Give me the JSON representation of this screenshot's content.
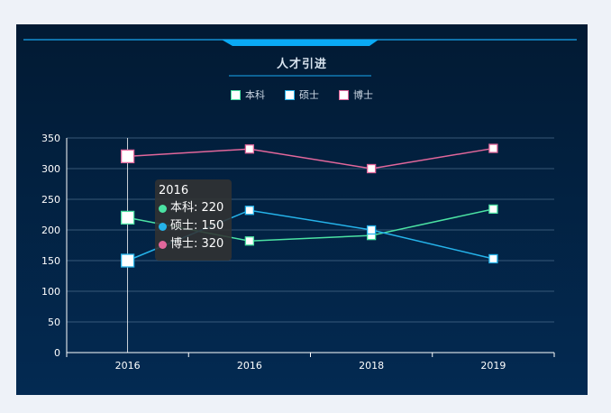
{
  "chart_data": {
    "type": "line",
    "title": "人才引进",
    "categories": [
      "2016",
      "2016",
      "2018",
      "2019"
    ],
    "ylim": [
      0,
      350
    ],
    "yticks": [
      0,
      50,
      100,
      150,
      200,
      250,
      300,
      350
    ],
    "grid": true,
    "legend_position": "top-center",
    "series": [
      {
        "name": "本科",
        "color": "#4be2a3",
        "values": [
          220,
          182,
          191,
          234
        ]
      },
      {
        "name": "硕士",
        "color": "#25b3ea",
        "values": [
          150,
          232,
          200,
          153
        ]
      },
      {
        "name": "博士",
        "color": "#e2679b",
        "values": [
          320,
          332,
          300,
          333
        ]
      }
    ]
  },
  "tooltip": {
    "title": "2016",
    "rows": [
      {
        "text": "本科: 220",
        "color": "#4be2a3"
      },
      {
        "text": "硕士: 150",
        "color": "#25b3ea"
      },
      {
        "text": "博士: 320",
        "color": "#e2679b"
      }
    ]
  }
}
